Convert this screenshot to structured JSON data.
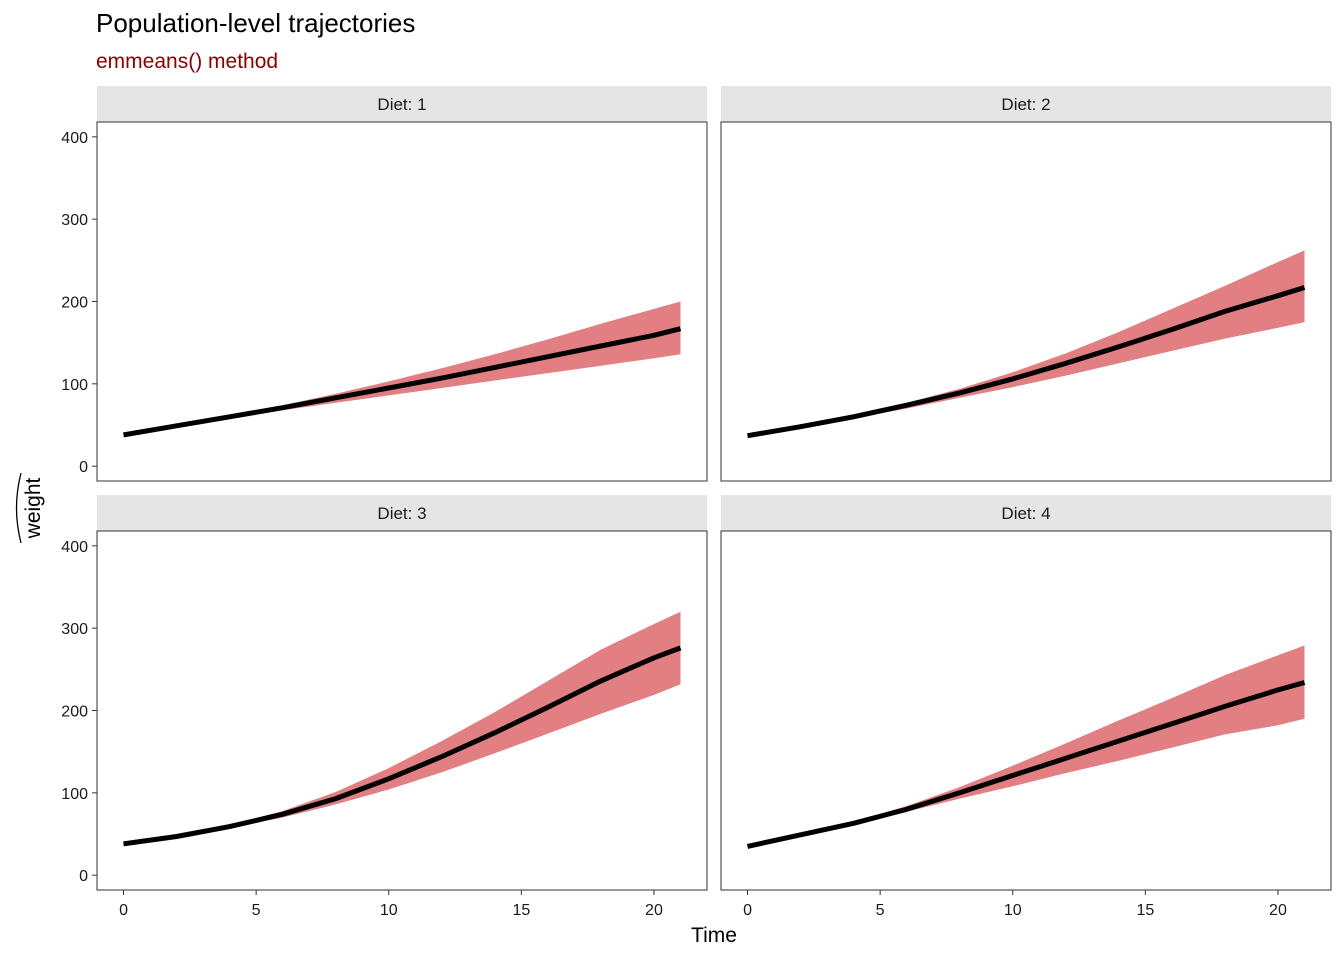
{
  "chart_data": {
    "type": "line",
    "title": "Population-level trajectories",
    "subtitle": "emmeans() method",
    "xlabel": "Time",
    "ylabel": "weight",
    "xlim": [
      -1,
      22
    ],
    "ylim": [
      -18,
      418
    ],
    "x_ticks": [
      0,
      5,
      10,
      15,
      20
    ],
    "y_ticks": [
      0,
      100,
      200,
      300,
      400
    ],
    "facet_layout": {
      "rows": 2,
      "cols": 2
    },
    "colors": {
      "line": "#000000",
      "ribbon": "#e17f82",
      "subtitle": "#8b0000",
      "strip_bg": "#e5e5e5"
    },
    "x": [
      0,
      2,
      4,
      6,
      8,
      10,
      12,
      14,
      16,
      18,
      20,
      21
    ],
    "panels": [
      {
        "label": "Diet: 1",
        "fit": [
          38,
          49,
          60,
          71,
          83,
          95,
          107,
          120,
          133,
          146,
          159,
          167
        ],
        "lower": [
          36,
          47,
          58,
          68,
          77,
          86,
          95,
          104,
          113,
          122,
          131,
          136
        ],
        "upper": [
          40,
          51,
          62,
          74,
          88,
          103,
          119,
          136,
          154,
          173,
          191,
          200
        ]
      },
      {
        "label": "Diet: 2",
        "fit": [
          37,
          48,
          60,
          74,
          89,
          106,
          125,
          145,
          166,
          188,
          207,
          217
        ],
        "lower": [
          35,
          46,
          58,
          70,
          83,
          96,
          110,
          125,
          140,
          155,
          168,
          175
        ],
        "upper": [
          40,
          51,
          63,
          77,
          94,
          114,
          137,
          163,
          191,
          219,
          248,
          262
        ]
      },
      {
        "label": "Diet: 3",
        "fit": [
          38,
          47,
          59,
          74,
          93,
          117,
          144,
          173,
          204,
          236,
          264,
          276
        ],
        "lower": [
          36,
          45,
          57,
          70,
          86,
          104,
          125,
          148,
          172,
          196,
          219,
          232
        ],
        "upper": [
          41,
          50,
          61,
          78,
          101,
          130,
          163,
          198,
          236,
          274,
          305,
          320
        ]
      },
      {
        "label": "Diet: 4",
        "fit": [
          35,
          49,
          63,
          80,
          100,
          121,
          142,
          163,
          184,
          205,
          225,
          234
        ],
        "lower": [
          33,
          47,
          61,
          77,
          93,
          108,
          124,
          139,
          155,
          171,
          182,
          190
        ],
        "upper": [
          38,
          51,
          65,
          84,
          107,
          133,
          160,
          188,
          215,
          243,
          267,
          279
        ]
      }
    ]
  }
}
